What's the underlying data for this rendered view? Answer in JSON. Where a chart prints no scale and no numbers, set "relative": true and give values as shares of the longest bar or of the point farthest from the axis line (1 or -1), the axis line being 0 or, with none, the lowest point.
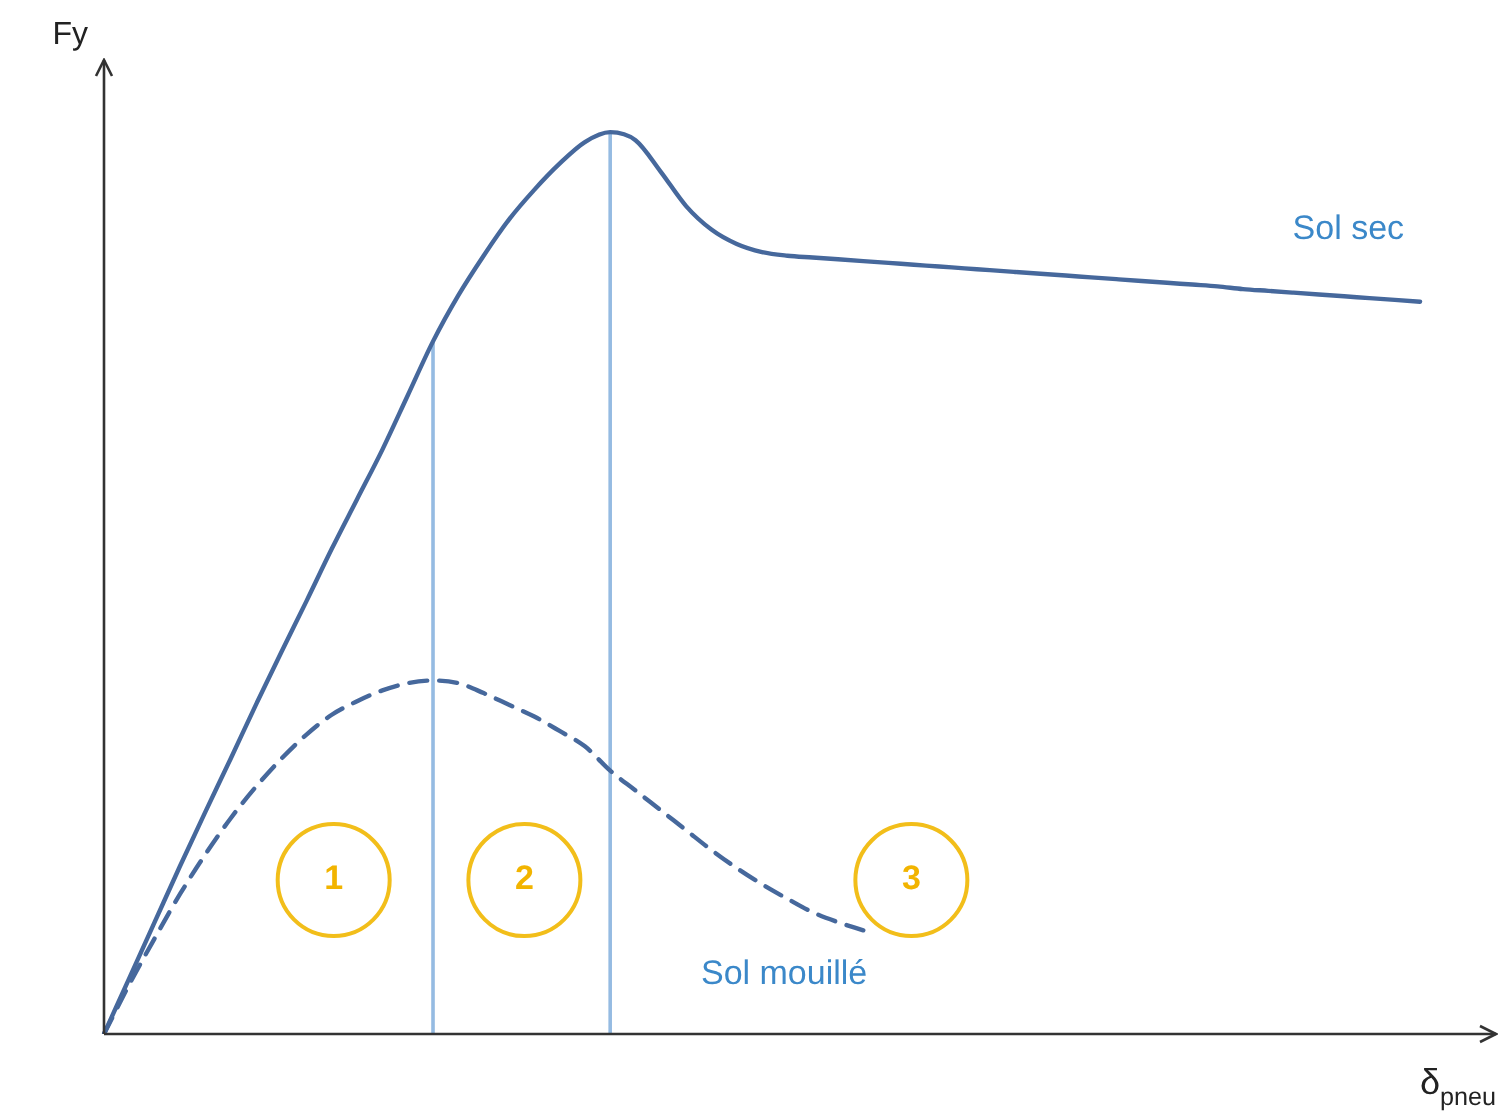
{
  "chart_data": {
    "type": "line",
    "relative": true,
    "xlabel": "δ$_{pneu}$",
    "ylabel": "Fy",
    "categories": [
      null,
      null,
      null,
      null,
      null,
      null,
      null,
      null,
      null,
      null,
      null,
      null,
      null,
      null,
      null,
      null,
      null,
      null,
      null,
      null,
      null,
      null,
      null,
      null,
      null,
      null,
      null,
      null,
      null,
      null,
      null,
      null,
      null,
      null,
      null,
      null,
      null,
      null,
      null,
      null,
      null,
      null,
      null,
      null,
      null,
      null,
      null,
      null,
      null,
      null,
      null,
      null,
      null,
      null,
      null,
      null
    ],
    "series": [
      {
        "name": "Sol sec",
        "color": "#46689c",
        "line_style": "solid",
        "values": [
          0,
          0.062,
          0.124,
          0.186,
          0.246,
          0.305,
          0.365,
          0.423,
          0.48,
          0.538,
          0.593,
          0.648,
          0.708,
          0.768,
          0.819,
          0.863,
          0.903,
          0.936,
          0.965,
          0.989,
          1,
          0.991,
          0.956,
          0.918,
          0.892,
          0.876,
          0.867,
          0.863,
          0.861,
          0.859,
          0.857,
          0.855,
          0.853,
          0.851,
          0.849,
          0.847,
          0.845,
          0.843,
          0.841,
          0.839,
          0.837,
          0.835,
          0.833,
          0.831,
          0.829,
          0.826,
          0.824,
          0.822,
          0.82,
          0.818,
          0.816,
          0.814,
          0.812,
          null,
          null,
          null
        ]
      },
      {
        "name": "Sol mouillé",
        "color": "#46689c",
        "line_style": "dashed",
        "values": [
          0,
          0.055,
          0.106,
          0.155,
          0.199,
          0.239,
          0.274,
          0.305,
          0.332,
          0.354,
          0.369,
          0.381,
          0.389,
          0.392,
          0.389,
          0.378,
          0.365,
          0.352,
          0.336,
          0.319,
          0.292,
          0.27,
          0.248,
          0.226,
          0.204,
          0.184,
          0.166,
          0.15,
          0.135,
          0.124,
          0.115,
          null,
          null,
          null,
          null,
          null,
          null,
          null,
          null,
          null,
          null,
          null,
          null,
          null,
          null,
          null,
          null,
          null,
          null,
          null,
          null,
          null,
          null,
          null,
          null,
          null
        ]
      }
    ],
    "annotations": [
      "1",
      "2",
      "3"
    ],
    "legend": false,
    "marker": "none"
  }
}
